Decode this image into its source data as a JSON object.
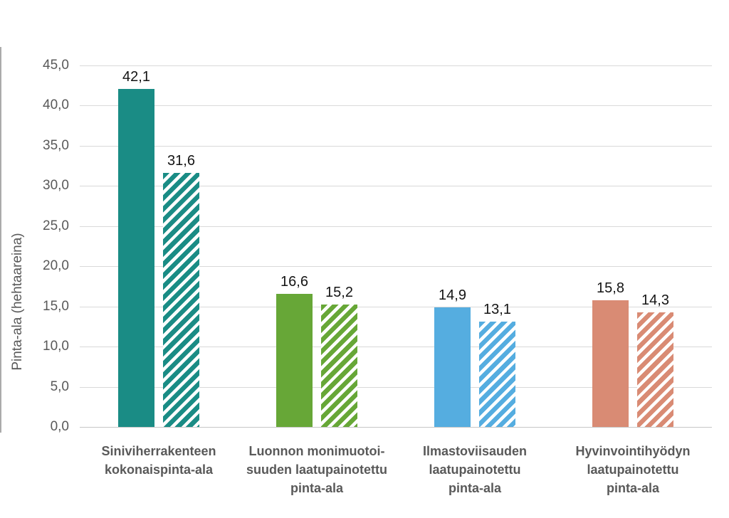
{
  "chart_data": {
    "type": "bar",
    "title": "",
    "xlabel": "",
    "ylabel": "Pinta-ala (hehtaareina)",
    "ylim": [
      0,
      45
    ],
    "grid": true,
    "legend": "none",
    "decimal_separator": ",",
    "yticks": [
      {
        "value": 0,
        "label": "0,0"
      },
      {
        "value": 5,
        "label": "5,0"
      },
      {
        "value": 10,
        "label": "10,0"
      },
      {
        "value": 15,
        "label": "15,0"
      },
      {
        "value": 20,
        "label": "20,0"
      },
      {
        "value": 25,
        "label": "25,0"
      },
      {
        "value": 30,
        "label": "30,0"
      },
      {
        "value": 35,
        "label": "35,0"
      },
      {
        "value": 40,
        "label": "40,0"
      },
      {
        "value": 45,
        "label": "45,0"
      }
    ],
    "categories": [
      {
        "label": "Siniviherrakenteen kokonaispinta-ala",
        "lines": [
          "Siniviherrakenteen",
          "kokonaispinta-ala"
        ],
        "color": "#1A8C85"
      },
      {
        "label": "Luonnon monimuotoi­suuden laatupainotettu pinta-ala",
        "lines": [
          "Luonnon monimuotoi-",
          "suuden laatupainotettu",
          "pinta-ala"
        ],
        "color": "#67A737"
      },
      {
        "label": "Ilmastoviisauden laatupainotettu pinta-ala",
        "lines": [
          "Ilmastoviisauden",
          "laatupainotettu",
          "pinta-ala"
        ],
        "color": "#55ADE0"
      },
      {
        "label": "Hyvinvointihyödyn laatupainotettu pinta-ala",
        "lines": [
          "Hyvinvointihyödyn",
          "laatupainotettu",
          "pinta-ala"
        ],
        "color": "#D98B74"
      }
    ],
    "series": [
      {
        "pattern": "solid",
        "values": [
          42.1,
          16.6,
          14.9,
          15.8
        ],
        "labels": [
          "42,1",
          "16,6",
          "14,9",
          "15,8"
        ]
      },
      {
        "pattern": "diagonal-hatch",
        "values": [
          31.6,
          15.2,
          13.1,
          14.3
        ],
        "labels": [
          "31,6",
          "15,2",
          "13,1",
          "14,3"
        ]
      }
    ]
  }
}
